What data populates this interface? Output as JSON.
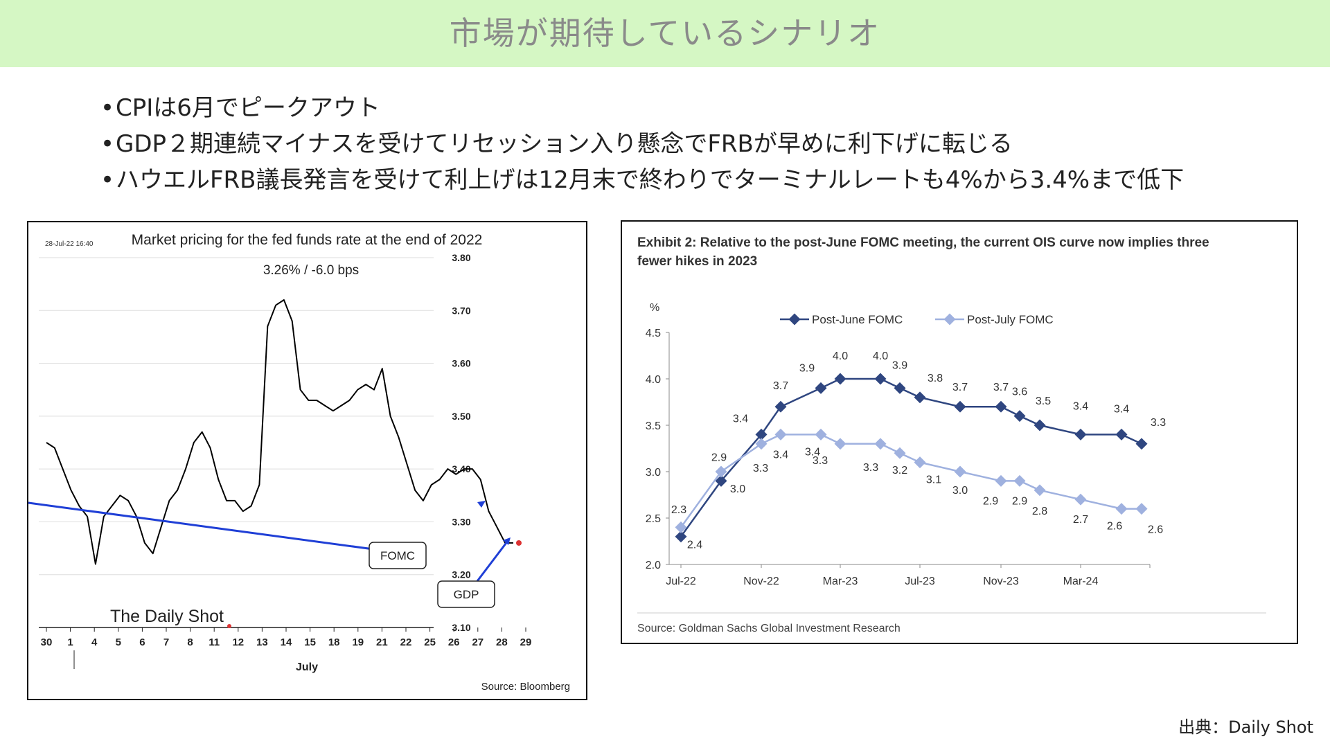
{
  "header": {
    "title": "市場が期待しているシナリオ"
  },
  "bullets": [
    "CPIは6月でピークアウト",
    "GDP２期連続マイナスを受けてリセッション入り懸念でFRBが早めに利下げに転じる",
    "ハウエルFRB議長発言を受けて利上げは12月末で終わりでターミナルレートも4%から3.4%まで低下"
  ],
  "footer": {
    "source": "出典：Daily Shot"
  },
  "colors": {
    "header_bg": "#d5f7c4",
    "post_june": "#2f4680",
    "post_july": "#9fb1df",
    "annotation_arrow": "#1f3fd6"
  },
  "chart_data": [
    {
      "type": "line",
      "title": "Market pricing for the fed funds rate at the end of 2022",
      "timestamp": "28-Jul-22 16:40",
      "subtitle": "3.26%  /  -6.0 bps",
      "xlabel": "July",
      "ylabel": "",
      "ylim": [
        3.1,
        3.8
      ],
      "yticks": [
        "3.80",
        "3.70",
        "3.60",
        "3.50",
        "3.40",
        "3.30",
        "3.20",
        "3.10"
      ],
      "xticks": [
        "30",
        "1",
        "4",
        "5",
        "6",
        "7",
        "8",
        "11",
        "12",
        "13",
        "14",
        "15",
        "18",
        "19",
        "21",
        "22",
        "25",
        "26",
        "27",
        "28",
        "29"
      ],
      "series": [
        {
          "values": [
            3.45,
            3.44,
            3.4,
            3.36,
            3.33,
            3.31,
            3.22,
            3.31,
            3.33,
            3.35,
            3.34,
            3.31,
            3.26,
            3.24,
            3.29,
            3.34,
            3.36,
            3.4,
            3.45,
            3.47,
            3.44,
            3.38,
            3.34,
            3.34,
            3.32,
            3.33,
            3.37,
            3.67,
            3.71,
            3.72,
            3.68,
            3.55,
            3.53,
            3.53,
            3.52,
            3.51,
            3.52,
            3.53,
            3.55,
            3.56,
            3.55,
            3.59,
            3.5,
            3.46,
            3.41,
            3.36,
            3.34,
            3.37,
            3.38,
            3.4,
            3.39,
            3.4,
            3.4,
            3.38,
            3.32,
            3.29,
            3.26,
            3.26
          ]
        }
      ],
      "grid": true,
      "annotations": [
        "FOMC",
        "GDP"
      ],
      "logo": "The Daily Shot",
      "source": "Source: Bloomberg"
    },
    {
      "type": "line",
      "title": "Exhibit 2: Relative to the post-June FOMC meeting, the current OIS curve now implies three fewer hikes in 2023",
      "ylabel": "%",
      "ylim": [
        2.0,
        4.5
      ],
      "yticks": [
        "4.5",
        "4.0",
        "3.5",
        "3.0",
        "2.5",
        "2.0"
      ],
      "xticks": [
        "Jul-22",
        "Nov-22",
        "Mar-23",
        "Jul-23",
        "Nov-23",
        "Mar-24"
      ],
      "x": [
        "Jul-22",
        "Sep-22",
        "Nov-22",
        "Dec-22",
        "Feb-23",
        "Mar-23",
        "May-23",
        "Jun-23",
        "Jul-23",
        "Sep-23",
        "Nov-23",
        "Dec-23",
        "Jan-24",
        "Mar-24",
        "May-24",
        "Jun-24"
      ],
      "series": [
        {
          "name": "Post-June FOMC",
          "values": [
            2.3,
            2.9,
            3.4,
            3.7,
            3.9,
            4.0,
            4.0,
            3.9,
            3.8,
            3.7,
            3.7,
            3.6,
            3.5,
            3.4,
            3.4,
            3.3
          ]
        },
        {
          "name": "Post-July FOMC",
          "values": [
            2.4,
            3.0,
            3.3,
            3.4,
            3.4,
            3.3,
            3.3,
            3.2,
            3.1,
            3.0,
            2.9,
            2.9,
            2.8,
            2.7,
            2.6,
            2.6
          ]
        }
      ],
      "legend": "top",
      "grid": false,
      "source": "Source: Goldman Sachs Global Investment Research"
    }
  ]
}
